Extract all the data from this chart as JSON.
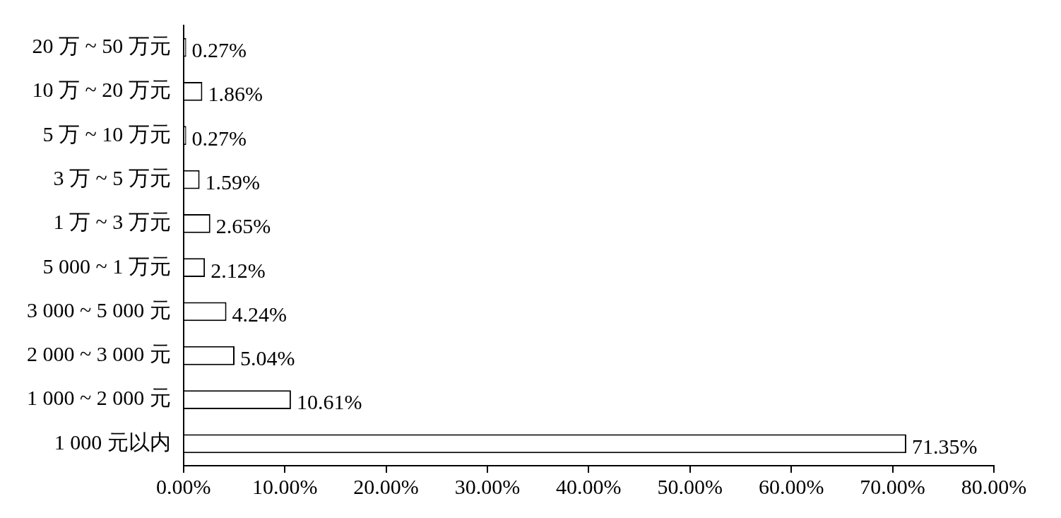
{
  "chart_data": {
    "type": "bar",
    "orientation": "horizontal",
    "categories": [
      "20 万 ~ 50 万元",
      "10 万 ~ 20 万元",
      "5 万 ~ 10 万元",
      "3 万 ~ 5 万元",
      "1 万 ~ 3 万元",
      "5 000 ~ 1 万元",
      "3 000 ~ 5 000 元",
      "2 000 ~ 3 000 元",
      "1 000 ~ 2 000 元",
      "1 000 元以内"
    ],
    "values": [
      0.27,
      1.86,
      0.27,
      1.59,
      2.65,
      2.12,
      4.24,
      5.04,
      10.61,
      71.35
    ],
    "value_labels": [
      "0.27%",
      "1.86%",
      "0.27%",
      "1.59%",
      "2.65%",
      "2.12%",
      "4.24%",
      "5.04%",
      "10.61%",
      "71.35%"
    ],
    "color": "#ffffff",
    "xlim": [
      0,
      80
    ],
    "xticks": [
      {
        "value": 0,
        "label": "0.00%"
      },
      {
        "value": 10,
        "label": "10.00%"
      },
      {
        "value": 20,
        "label": "20.00%"
      },
      {
        "value": 30,
        "label": "30.00%"
      },
      {
        "value": 40,
        "label": "40.00%"
      },
      {
        "value": 50,
        "label": "50.00%"
      },
      {
        "value": 60,
        "label": "60.00%"
      },
      {
        "value": 70,
        "label": "70.00%"
      },
      {
        "value": 80,
        "label": "80.00%"
      }
    ],
    "grid": false,
    "legend": false
  }
}
